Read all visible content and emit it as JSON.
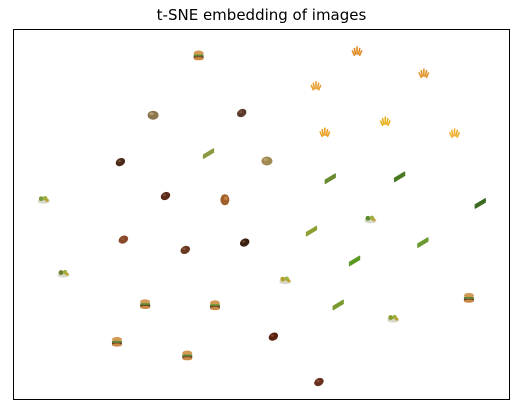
{
  "chart_data": {
    "type": "scatter",
    "title": "t-SNE embedding of images",
    "xlabel": "",
    "ylabel": "",
    "xlim": [
      0,
      100
    ],
    "ylim": [
      0,
      100
    ],
    "grid": false,
    "legend": "none",
    "ticks": "none",
    "points": [
      {
        "x": 37.3,
        "y": 93.2,
        "kind": "burger",
        "color": "#a0703a"
      },
      {
        "x": 69.3,
        "y": 94.2,
        "kind": "fries",
        "color": "#e08a20"
      },
      {
        "x": 82.8,
        "y": 88.2,
        "kind": "fries",
        "color": "#e39428"
      },
      {
        "x": 61.0,
        "y": 84.8,
        "kind": "fries",
        "color": "#e6a030"
      },
      {
        "x": 28.1,
        "y": 76.9,
        "kind": "potato",
        "color": "#8c7650"
      },
      {
        "x": 46.0,
        "y": 77.5,
        "kind": "steak",
        "color": "#5a3a2a"
      },
      {
        "x": 75.0,
        "y": 75.2,
        "kind": "fries",
        "color": "#e8b020"
      },
      {
        "x": 62.8,
        "y": 72.2,
        "kind": "fries",
        "color": "#eaa025"
      },
      {
        "x": 89.0,
        "y": 72.0,
        "kind": "fries",
        "color": "#f0b030"
      },
      {
        "x": 21.5,
        "y": 64.2,
        "kind": "steak",
        "color": "#4a2a1a"
      },
      {
        "x": 39.3,
        "y": 66.5,
        "kind": "asparagus",
        "color": "#8a9a40"
      },
      {
        "x": 51.1,
        "y": 64.5,
        "kind": "potato",
        "color": "#a08a50"
      },
      {
        "x": 63.9,
        "y": 59.7,
        "kind": "asparagus",
        "color": "#6a8a30"
      },
      {
        "x": 77.9,
        "y": 60.2,
        "kind": "asparagus",
        "color": "#4a7a20"
      },
      {
        "x": 6.0,
        "y": 54.0,
        "kind": "salad",
        "color": "#7a9a40"
      },
      {
        "x": 30.6,
        "y": 55.0,
        "kind": "steak",
        "color": "#5a2a1a"
      },
      {
        "x": 42.6,
        "y": 54.0,
        "kind": "chicken",
        "color": "#a0602a"
      },
      {
        "x": 94.2,
        "y": 53.0,
        "kind": "asparagus",
        "color": "#3a6a20"
      },
      {
        "x": 72.0,
        "y": 48.7,
        "kind": "salad",
        "color": "#5a8a30"
      },
      {
        "x": 60.1,
        "y": 45.5,
        "kind": "asparagus",
        "color": "#8aa030"
      },
      {
        "x": 22.1,
        "y": 43.2,
        "kind": "steak",
        "color": "#8a4a2a"
      },
      {
        "x": 46.6,
        "y": 42.4,
        "kind": "steak",
        "color": "#3a2010"
      },
      {
        "x": 82.6,
        "y": 42.4,
        "kind": "asparagus",
        "color": "#6a9a30"
      },
      {
        "x": 34.6,
        "y": 40.4,
        "kind": "steak",
        "color": "#6a3a20"
      },
      {
        "x": 68.8,
        "y": 37.4,
        "kind": "asparagus",
        "color": "#5a9a20"
      },
      {
        "x": 10.0,
        "y": 34.0,
        "kind": "salad",
        "color": "#6a8030"
      },
      {
        "x": 54.8,
        "y": 32.2,
        "kind": "salad",
        "color": "#b0a030"
      },
      {
        "x": 91.9,
        "y": 27.5,
        "kind": "burger",
        "color": "#c07030"
      },
      {
        "x": 26.5,
        "y": 25.8,
        "kind": "burger",
        "color": "#b07040"
      },
      {
        "x": 40.6,
        "y": 25.5,
        "kind": "burger",
        "color": "#a06030"
      },
      {
        "x": 65.5,
        "y": 25.5,
        "kind": "asparagus",
        "color": "#7a9a30"
      },
      {
        "x": 76.6,
        "y": 21.8,
        "kind": "salad",
        "color": "#8a9a30"
      },
      {
        "x": 52.4,
        "y": 16.9,
        "kind": "steak",
        "color": "#5a2010"
      },
      {
        "x": 20.8,
        "y": 15.6,
        "kind": "burger",
        "color": "#c08040"
      },
      {
        "x": 35.0,
        "y": 11.9,
        "kind": "burger",
        "color": "#b07030"
      },
      {
        "x": 61.6,
        "y": 4.6,
        "kind": "steak",
        "color": "#6a3020"
      }
    ]
  }
}
